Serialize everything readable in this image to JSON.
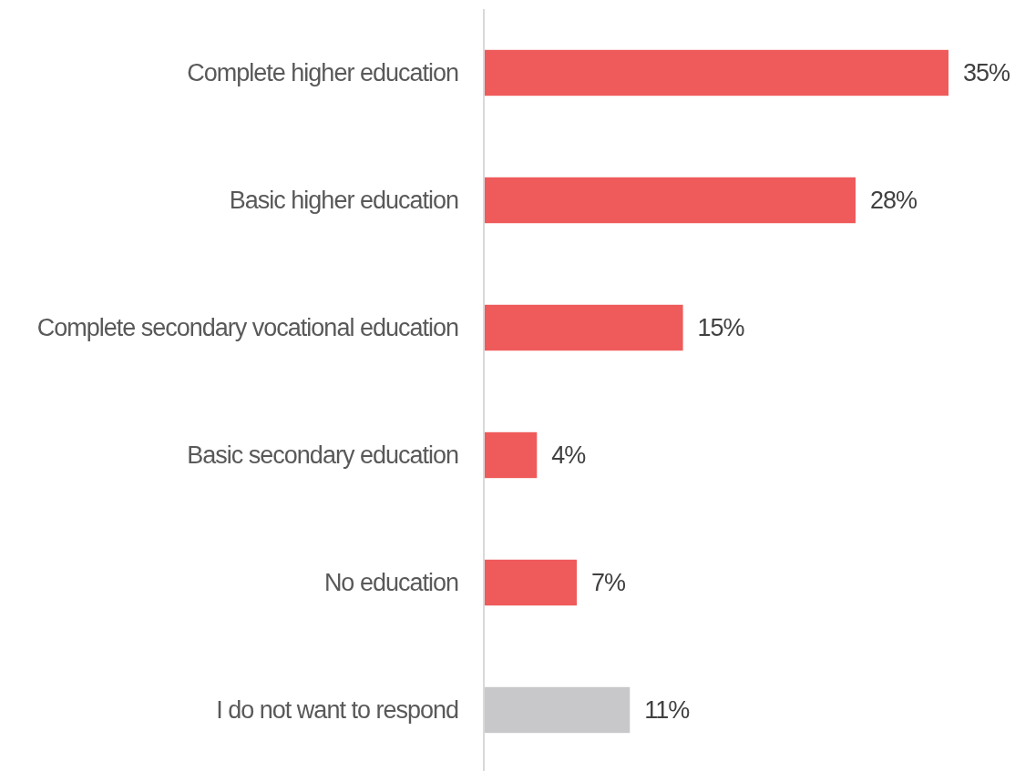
{
  "chart_data": {
    "type": "bar",
    "orientation": "horizontal",
    "categories": [
      "Complete higher education",
      "Basic higher education",
      "Complete secondary vocational education",
      "Basic secondary education",
      "No education",
      "I do not want to respond"
    ],
    "values": [
      35,
      28,
      15,
      4,
      7,
      11
    ],
    "colors": [
      "#ef5a5a",
      "#ef5a5a",
      "#ef5a5a",
      "#ef5a5a",
      "#ef5a5a",
      "#c8c8ca"
    ],
    "value_labels": [
      "35%",
      "28%",
      "15%",
      "4%",
      "7%",
      "11%"
    ]
  }
}
